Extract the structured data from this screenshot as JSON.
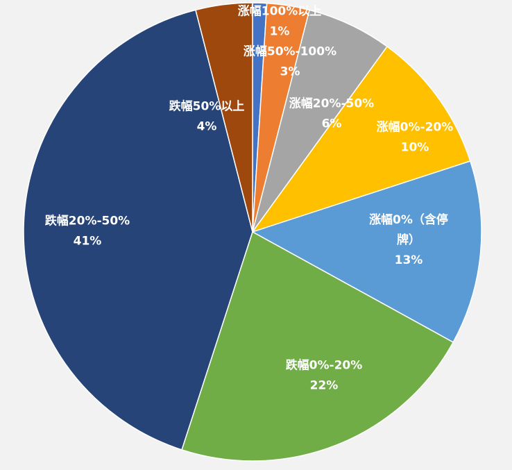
{
  "chart_data": {
    "type": "pie",
    "title": "",
    "start_angle_deg": 0,
    "direction": "clockwise",
    "slices": [
      {
        "label_lines": [
          "涨幅100%以上"
        ],
        "value_label": "1%",
        "value": 1,
        "color": "#4472C4"
      },
      {
        "label_lines": [
          "涨幅50%-100%"
        ],
        "value_label": "3%",
        "value": 3,
        "color": "#ED7D31"
      },
      {
        "label_lines": [
          "涨幅20%-50%"
        ],
        "value_label": "6%",
        "value": 6,
        "color": "#A5A5A5"
      },
      {
        "label_lines": [
          "涨幅0%-20%"
        ],
        "value_label": "10%",
        "value": 10,
        "color": "#FFC000"
      },
      {
        "label_lines": [
          "涨幅0%（含停",
          "牌）"
        ],
        "value_label": "13%",
        "value": 13,
        "color": "#5B9BD5"
      },
      {
        "label_lines": [
          "跌幅0%-20%"
        ],
        "value_label": "22%",
        "value": 22,
        "color": "#70AD47"
      },
      {
        "label_lines": [
          "跌幅20%-50%"
        ],
        "value_label": "41%",
        "value": 41,
        "color": "#264478"
      },
      {
        "label_lines": [
          "跌幅50%以上"
        ],
        "value_label": "4%",
        "value": 4,
        "color": "#9E480E"
      }
    ]
  }
}
